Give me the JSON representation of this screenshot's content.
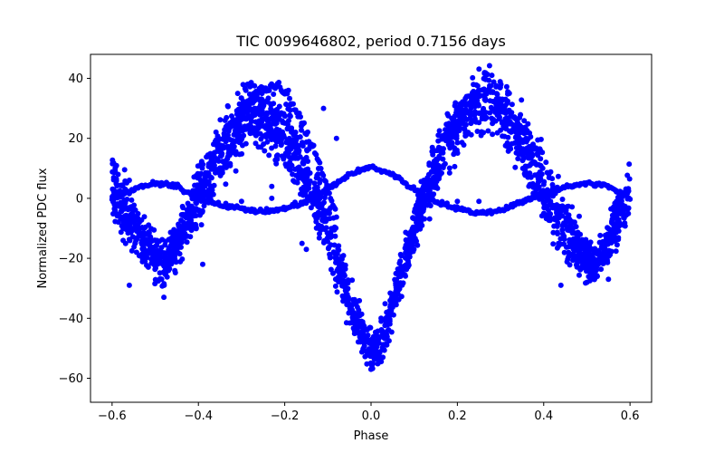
{
  "chart_data": {
    "type": "scatter",
    "title": "TIC 0099646802, period 0.7156 days",
    "xlabel": "Phase",
    "ylabel": "Normalized PDC flux",
    "xlim": [
      -0.65,
      0.65
    ],
    "ylim": [
      -68,
      48
    ],
    "xticks": [
      -0.6,
      -0.4,
      -0.2,
      0.0,
      0.2,
      0.4,
      0.6
    ],
    "xtick_labels": [
      "−0.6",
      "−0.4",
      "−0.2",
      "0.0",
      "0.2",
      "0.4",
      "0.6"
    ],
    "yticks": [
      -60,
      -40,
      -20,
      0,
      20,
      40
    ],
    "ytick_labels": [
      "−60",
      "−40",
      "−20",
      "0",
      "20",
      "40"
    ],
    "grid": false,
    "marker_color": "#0000ff",
    "series": [
      {
        "values_description_omitted": true,
        "main_band": {
          "x": [
            -0.6,
            -0.55,
            -0.5,
            -0.48,
            -0.45,
            -0.4,
            -0.35,
            -0.3,
            -0.27,
            -0.25,
            -0.2,
            -0.15,
            -0.1,
            -0.05,
            0.0,
            0.02,
            0.05,
            0.1,
            0.15,
            0.2,
            0.25,
            0.27,
            0.3,
            0.35,
            0.4,
            0.45,
            0.5,
            0.52,
            0.55,
            0.6
          ],
          "y": [
            5,
            -10,
            -20,
            -22,
            -15,
            0,
            15,
            25,
            28,
            27,
            20,
            8,
            -10,
            -35,
            -52,
            -50,
            -35,
            -10,
            10,
            25,
            32,
            33,
            30,
            20,
            5,
            -10,
            -20,
            -22,
            -15,
            3
          ],
          "spread": [
            10,
            10,
            7,
            6,
            7,
            9,
            10,
            10,
            9,
            9,
            10,
            10,
            10,
            7,
            6,
            6,
            6,
            7,
            8,
            9,
            9,
            9,
            9,
            10,
            10,
            9,
            7,
            6,
            7,
            9
          ]
        },
        "secondary_curve": {
          "x": [
            -0.6,
            -0.55,
            -0.5,
            -0.45,
            -0.4,
            -0.35,
            -0.3,
            -0.25,
            -0.2,
            -0.15,
            -0.1,
            -0.05,
            0.0,
            0.05,
            0.1,
            0.15,
            0.2,
            0.25,
            0.3,
            0.35,
            0.4,
            0.45,
            0.5,
            0.55,
            0.6
          ],
          "y": [
            0,
            3,
            5,
            4,
            0,
            -2,
            -3.5,
            -4.5,
            -3.5,
            -1,
            3,
            8,
            10.5,
            8,
            3,
            -1,
            -3.5,
            -5,
            -4,
            -1,
            1,
            4,
            5,
            4,
            0
          ]
        },
        "upper_arc": {
          "x": [
            -0.3,
            -0.26,
            -0.22,
            -0.19,
            -0.16,
            -0.12,
            -0.08
          ],
          "y": [
            30,
            36,
            37.5,
            34,
            25,
            12,
            -5
          ]
        }
      }
    ]
  }
}
